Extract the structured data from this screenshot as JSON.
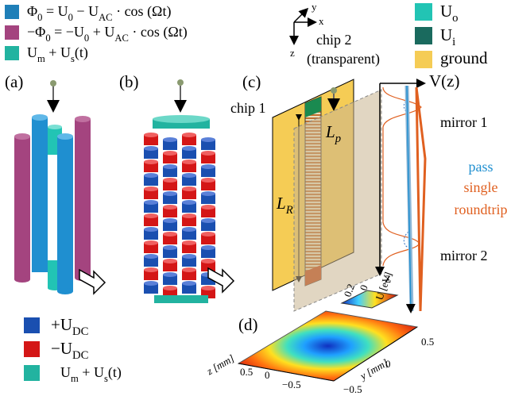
{
  "legend_left": [
    [
      "Φ",
      "0",
      " =    U",
      "0",
      " − U",
      "AC",
      " · cos (Ωt)"
    ],
    [
      "−Φ",
      "0",
      " = −U",
      "0",
      " + U",
      "AC",
      " · cos (Ωt)"
    ],
    [
      "U",
      "m",
      " + U",
      "s",
      "(t)"
    ]
  ],
  "legend_right": [
    [
      "U",
      "o"
    ],
    [
      "U",
      "i"
    ],
    [
      "ground"
    ]
  ],
  "panels": {
    "a": "(a)",
    "b": "(b)",
    "c": "(c)",
    "d": "(d)"
  },
  "labels": {
    "chip2": "chip 2",
    "chip2_note": "(transparent)",
    "chip1": "chip 1",
    "Lp": [
      "L",
      "p"
    ],
    "LR": [
      "L",
      "R"
    ],
    "potential": "V(z)",
    "z_axis": "z",
    "mirror1": "mirror 1",
    "mirror2": "mirror 2",
    "pass": "pass",
    "single": "single",
    "roundtrip": "roundtrip",
    "coord": {
      "y": "y",
      "x": "x",
      "z": "z"
    }
  },
  "legend_bottom": [
    [
      "+U",
      "DC"
    ],
    [
      "−U",
      "DC"
    ],
    [
      "U",
      "m",
      " + U",
      "s",
      "(t)"
    ]
  ],
  "plot_d": {
    "colorbar_label": "U [eV]",
    "colorbar_ticks": [
      "0.2",
      "0"
    ],
    "y_label": "y [mm]",
    "y_ticks": [
      "0.5",
      "0",
      "−0.5"
    ],
    "z_label": "z [mm]",
    "z_ticks": [
      "0.5",
      "0",
      "−0.5"
    ]
  }
}
